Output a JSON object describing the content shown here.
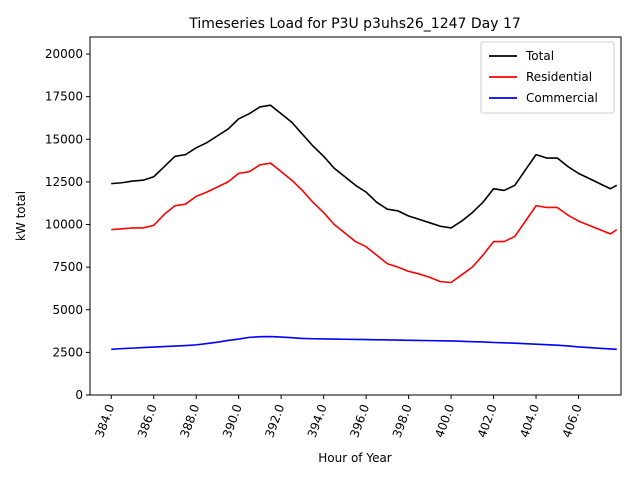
{
  "chart_data": {
    "type": "line",
    "title": "Timeseries Load for P3U p3uhs26_1247  Day 17",
    "xlabel": "Hour of Year",
    "ylabel": "kW total",
    "xlim": [
      383.0,
      408.0
    ],
    "ylim": [
      0,
      21000
    ],
    "xticks": [
      384,
      386,
      388,
      390,
      392,
      394,
      396,
      398,
      400,
      402,
      404,
      406
    ],
    "xtick_labels": [
      "384.0",
      "386.0",
      "388.0",
      "390.0",
      "392.0",
      "394.0",
      "396.0",
      "398.0",
      "400.0",
      "402.0",
      "404.0",
      "406.0"
    ],
    "yticks": [
      0,
      2500,
      5000,
      7500,
      10000,
      12500,
      15000,
      17500,
      20000
    ],
    "ytick_labels": [
      "0",
      "2500",
      "5000",
      "7500",
      "10000",
      "12500",
      "15000",
      "17500",
      "20000"
    ],
    "legend_position": "upper right",
    "grid": false,
    "x": [
      384,
      384.5,
      385,
      385.5,
      386,
      386.5,
      387,
      387.5,
      388,
      388.5,
      389,
      389.5,
      390,
      390.5,
      391,
      391.5,
      392,
      392.5,
      393,
      393.5,
      394,
      394.5,
      395,
      395.5,
      396,
      396.5,
      397,
      397.5,
      398,
      398.5,
      399,
      399.5,
      400,
      400.5,
      401,
      401.5,
      402,
      402.5,
      403,
      403.5,
      404,
      404.5,
      405,
      405.5,
      406,
      406.5,
      407,
      407.5,
      407.8
    ],
    "series": [
      {
        "name": "Total",
        "color": "#000000",
        "values": [
          12400,
          12450,
          12550,
          12600,
          12800,
          13400,
          14000,
          14100,
          14500,
          14800,
          15200,
          15600,
          16200,
          16500,
          16900,
          17000,
          16500,
          16000,
          15300,
          14600,
          14000,
          13300,
          12800,
          12300,
          11900,
          11300,
          10900,
          10800,
          10500,
          10300,
          10100,
          9900,
          9800,
          10200,
          10700,
          11300,
          12100,
          12000,
          12300,
          13200,
          14100,
          13900,
          13900,
          13400,
          13000,
          12700,
          12400,
          12100,
          12300
        ]
      },
      {
        "name": "Residential",
        "color": "#ff0000",
        "values": [
          9700,
          9750,
          9800,
          9800,
          9950,
          10600,
          11100,
          11200,
          11650,
          11900,
          12200,
          12500,
          13000,
          13100,
          13500,
          13600,
          13100,
          12600,
          12000,
          11300,
          10700,
          10000,
          9500,
          9000,
          8700,
          8200,
          7700,
          7500,
          7250,
          7100,
          6900,
          6650,
          6600,
          7050,
          7500,
          8200,
          9000,
          9000,
          9300,
          10200,
          11100,
          11000,
          11000,
          10550,
          10200,
          9950,
          9700,
          9450,
          9700
        ]
      },
      {
        "name": "Commercial",
        "color": "#0000ff",
        "values": [
          2680,
          2720,
          2750,
          2780,
          2810,
          2840,
          2870,
          2900,
          2940,
          3020,
          3100,
          3200,
          3280,
          3380,
          3420,
          3430,
          3400,
          3360,
          3320,
          3300,
          3290,
          3280,
          3270,
          3260,
          3250,
          3240,
          3230,
          3220,
          3210,
          3200,
          3190,
          3180,
          3170,
          3150,
          3130,
          3110,
          3080,
          3060,
          3040,
          3010,
          2980,
          2950,
          2920,
          2880,
          2820,
          2780,
          2740,
          2700,
          2680
        ]
      }
    ]
  }
}
